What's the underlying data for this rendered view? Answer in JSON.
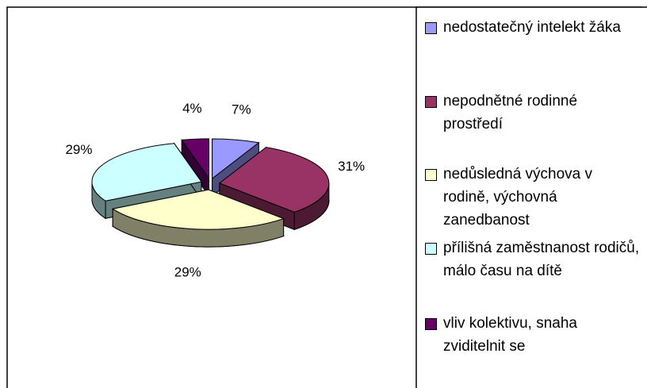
{
  "chart_data": {
    "type": "pie",
    "categories": [
      "nedostatečný intelekt žáka",
      "nepodnětné rodinné prostředí",
      "nedůsledná výchova v rodině, výchovná zanedbanost",
      "přílišná zaměstnanost rodičů, málo času na dítě",
      "vliv kolektivu, snaha zviditelnit se"
    ],
    "values": [
      7,
      31,
      29,
      29,
      4
    ],
    "value_labels": [
      "7%",
      "31%",
      "29%",
      "29%",
      "4%"
    ],
    "colors": [
      "#9999ff",
      "#993366",
      "#ffffcc",
      "#ccffff",
      "#660066"
    ],
    "legend": "right"
  }
}
